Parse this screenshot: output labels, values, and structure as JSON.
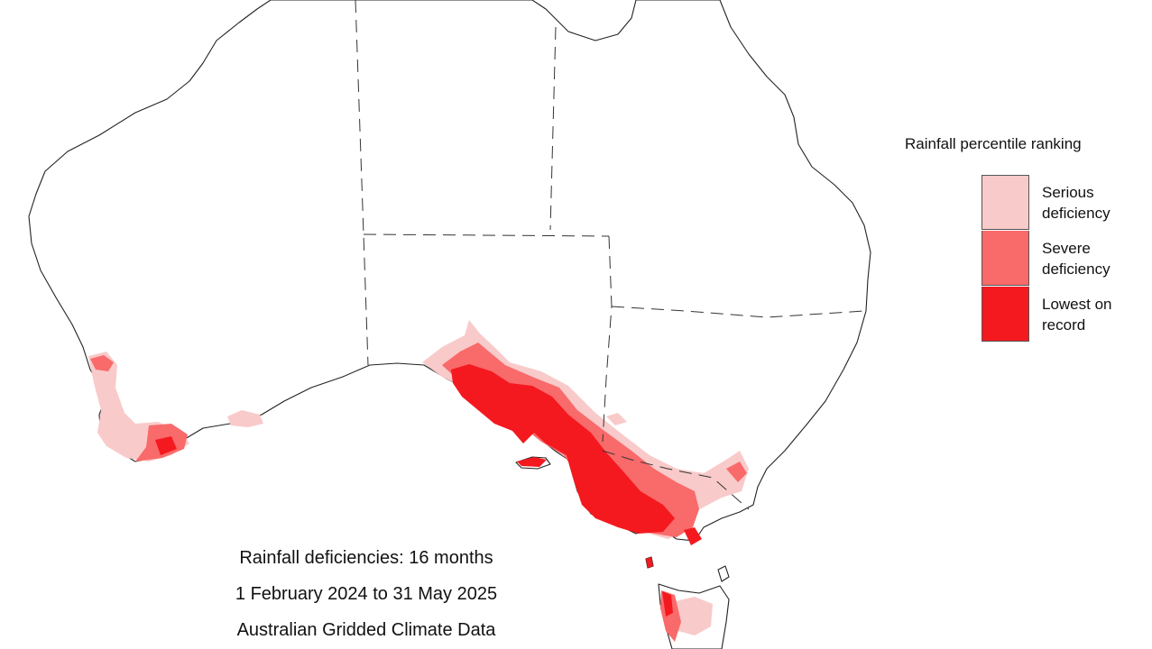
{
  "legend": {
    "title": "Rainfall percentile ranking",
    "items": [
      {
        "label": "Serious deficiency",
        "color": "#f9caca"
      },
      {
        "label": "Severe deficiency",
        "color": "#f96a6a"
      },
      {
        "label": "Lowest on record",
        "color": "#f4191f"
      }
    ]
  },
  "caption": {
    "line1": "Rainfall deficiencies: 16 months",
    "line2": "1 February 2024 to 31 May 2025",
    "line3": "Australian Gridded Climate Data"
  },
  "colors": {
    "coastline": "#222222",
    "land": "#ffffff",
    "state_border": "#333333"
  }
}
